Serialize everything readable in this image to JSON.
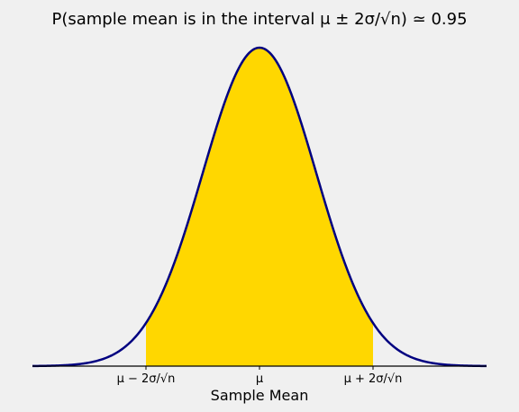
{
  "chart_data": {
    "type": "area",
    "title": "P(sample mean is in the interval μ ± 2σ/√n) ≃ 0.95",
    "xlabel": "Sample Mean",
    "ylabel": "",
    "distribution": "normal",
    "shaded_interval": [
      -2,
      2
    ],
    "shaded_probability": 0.95,
    "xlim": [
      -4,
      4
    ],
    "tick_values": [
      -2,
      0,
      2
    ],
    "tick_labels": [
      "μ − 2σ/√n",
      "μ",
      "μ + 2σ/√n"
    ],
    "grid": false,
    "legend": "none"
  },
  "colors": {
    "curve": "#000080",
    "fill": "#ffd700",
    "background": "#f0f0f0",
    "axis": "#000000"
  }
}
